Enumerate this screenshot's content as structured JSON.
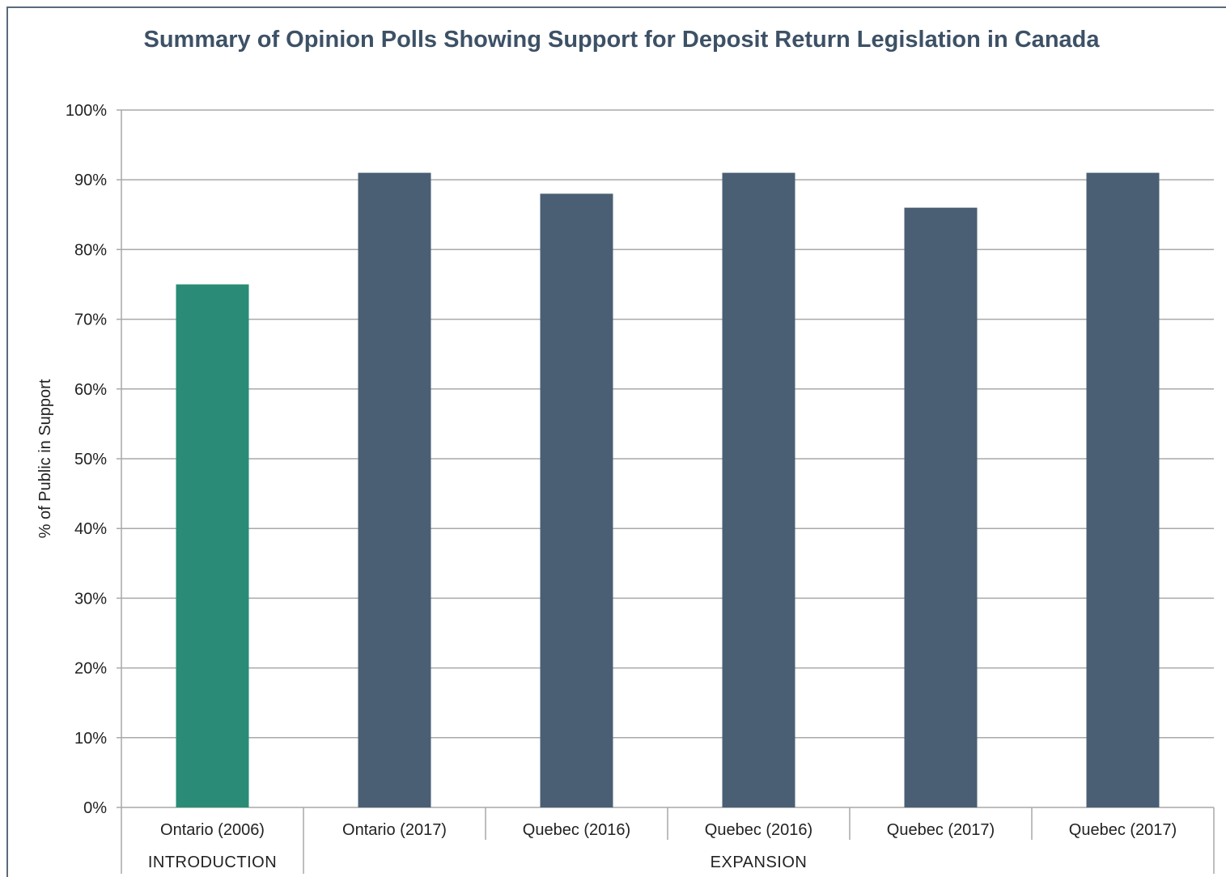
{
  "chart_data": {
    "type": "bar",
    "title": "Summary of Opinion Polls Showing Support for Deposit Return Legislation in Canada",
    "ylabel": "% of Public in Support",
    "xlabel": "",
    "ylim": [
      0,
      100
    ],
    "yticks": [
      "0%",
      "10%",
      "20%",
      "30%",
      "40%",
      "50%",
      "60%",
      "70%",
      "80%",
      "90%",
      "100%"
    ],
    "categories": [
      "Ontario (2006)",
      "Ontario (2017)",
      "Quebec (2016)",
      "Quebec (2016)",
      "Quebec (2017)",
      "Quebec (2017)"
    ],
    "values": [
      75,
      91,
      88,
      91,
      86,
      91
    ],
    "bar_colors": [
      "#2a8c76",
      "#4a5f74",
      "#4a5f74",
      "#4a5f74",
      "#4a5f74",
      "#4a5f74"
    ],
    "groups": [
      {
        "label": "INTRODUCTION",
        "categories": [
          "Ontario (2006)"
        ]
      },
      {
        "label": "EXPANSION",
        "categories": [
          "Ontario (2017)",
          "Quebec (2016)",
          "Quebec (2016)",
          "Quebec (2017)",
          "Quebec (2017)"
        ]
      }
    ],
    "grid": true,
    "legend": "none"
  }
}
